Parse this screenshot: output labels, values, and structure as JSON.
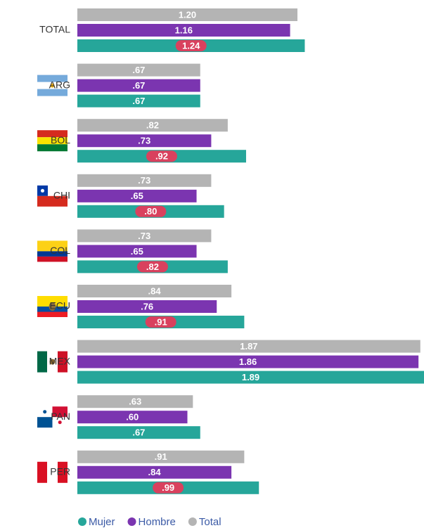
{
  "chart_data": {
    "type": "bar",
    "orientation": "horizontal",
    "categories": [
      "TOTAL",
      "ARG",
      "BOL",
      "CHI",
      "COL",
      "ECU",
      "MEX",
      "PAN",
      "PER"
    ],
    "series": [
      {
        "name": "Mujer",
        "color": "#26a69a",
        "values": [
          1.24,
          0.67,
          0.92,
          0.8,
          0.82,
          0.91,
          1.89,
          0.67,
          0.99
        ],
        "value_labels": [
          "1.24",
          ".67",
          ".92",
          ".80",
          ".82",
          ".91",
          "1.89",
          ".67",
          ".99"
        ],
        "highlight": [
          true,
          false,
          true,
          true,
          true,
          true,
          false,
          false,
          true
        ],
        "highlight_color": "#d9415e"
      },
      {
        "name": "Hombre",
        "color": "#7b35b0",
        "values": [
          1.16,
          0.67,
          0.73,
          0.65,
          0.65,
          0.76,
          1.86,
          0.6,
          0.84
        ],
        "value_labels": [
          "1.16",
          ".67",
          ".73",
          ".65",
          ".65",
          ".76",
          "1.86",
          ".60",
          ".84"
        ]
      },
      {
        "name": "Total",
        "color": "#b4b4b4",
        "values": [
          1.2,
          0.67,
          0.82,
          0.73,
          0.73,
          0.84,
          1.87,
          0.63,
          0.91
        ],
        "value_labels": [
          "1.20",
          ".67",
          ".82",
          ".73",
          ".73",
          ".84",
          "1.87",
          ".63",
          ".91"
        ]
      }
    ],
    "legend": "bottom"
  }
}
